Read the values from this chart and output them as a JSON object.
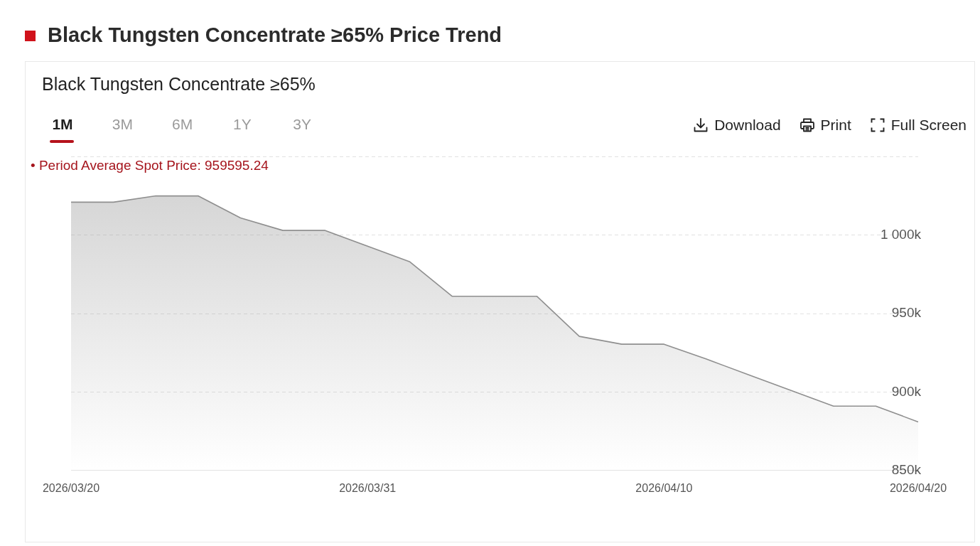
{
  "chart_data": {
    "type": "area",
    "title": "Black Tungsten Concentrate ≥65% Price Trend",
    "subtitle": "Black Tungsten Concentrate ≥65%",
    "categories": [
      "2026/03/20",
      null,
      null,
      null,
      null,
      null,
      null,
      "2026/03/31",
      null,
      null,
      null,
      null,
      null,
      null,
      "2026/04/10",
      null,
      null,
      null,
      null,
      null,
      "2026/04/20"
    ],
    "series": [
      {
        "color": "#8f8f8f",
        "values": [
          1021000,
          1021000,
          1025000,
          1025000,
          1011000,
          1003000,
          1003000,
          993000,
          983000,
          961000,
          961000,
          961000,
          935500,
          930500,
          930500,
          921000,
          911000,
          901000,
          891000,
          891000,
          881000
        ]
      }
    ],
    "ylim": [
      850000,
      1050000
    ],
    "yticks": [
      {
        "value": 850000,
        "label": "850k"
      },
      {
        "value": 900000,
        "label": "900k"
      },
      {
        "value": 950000,
        "label": "950k"
      },
      {
        "value": 1000000,
        "label": "1 000k"
      },
      {
        "value": 1050000,
        "label": null
      }
    ],
    "grid": "y",
    "annotations": [
      "• Period Average Spot Price: 959595.24",
      "1M",
      "3M",
      "6M",
      "1Y",
      "3Y",
      "Download",
      "Print",
      "Full Screen"
    ]
  }
}
